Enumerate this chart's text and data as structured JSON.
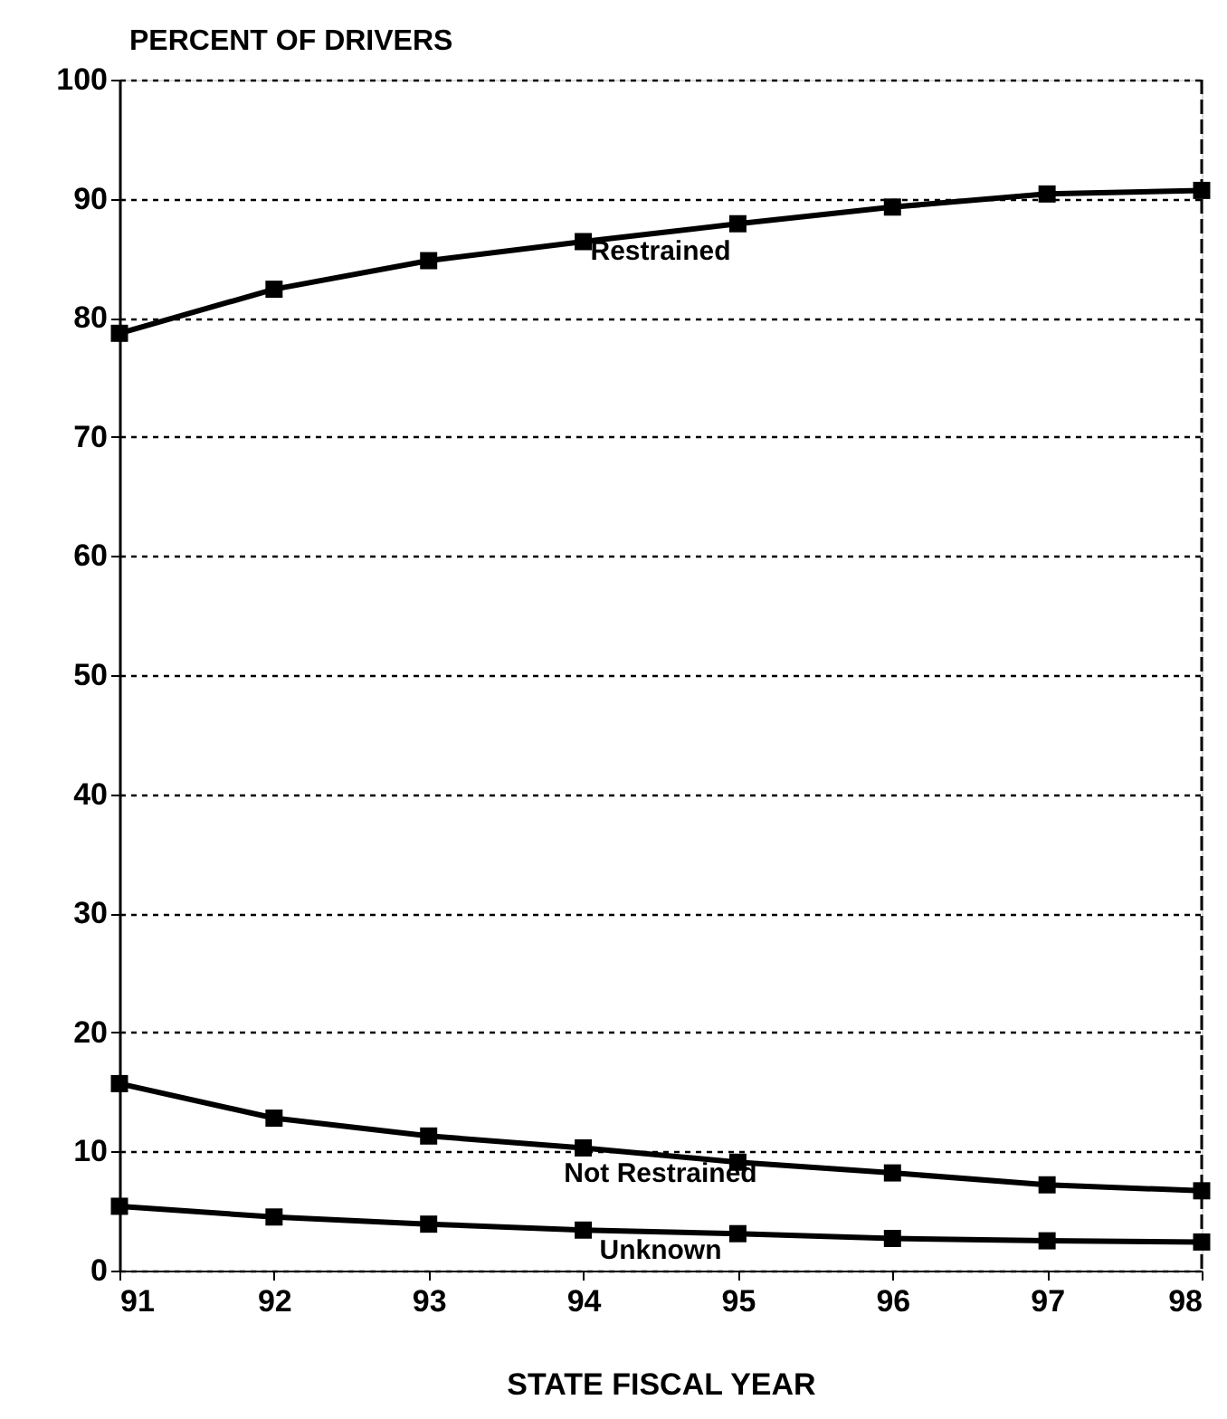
{
  "chart_data": {
    "type": "line",
    "xlabel": "STATE FISCAL YEAR",
    "ylabel": "PERCENT OF DRIVERS",
    "x": [
      91,
      92,
      93,
      94,
      95,
      96,
      97,
      98
    ],
    "series": [
      {
        "name": "Restrained",
        "color": "#000000",
        "values": [
          78.7,
          82.4,
          84.8,
          86.4,
          87.9,
          89.3,
          90.4,
          90.7
        ]
      },
      {
        "name": "Not Restrained",
        "color": "#000000",
        "values": [
          15.7,
          12.8,
          11.3,
          10.3,
          9.1,
          8.2,
          7.2,
          6.7
        ]
      },
      {
        "name": "Unknown",
        "color": "#000000",
        "values": [
          5.4,
          4.5,
          3.9,
          3.4,
          3.1,
          2.7,
          2.5,
          2.4
        ]
      }
    ],
    "xlim": [
      91,
      98
    ],
    "xticks": [
      91,
      92,
      93,
      94,
      95,
      96,
      97,
      98
    ],
    "ylim": [
      0,
      100
    ],
    "yticks": [
      0,
      10,
      20,
      30,
      40,
      50,
      60,
      70,
      80,
      90,
      100
    ],
    "grid": "y",
    "marker": "square",
    "line_style": "solid"
  }
}
